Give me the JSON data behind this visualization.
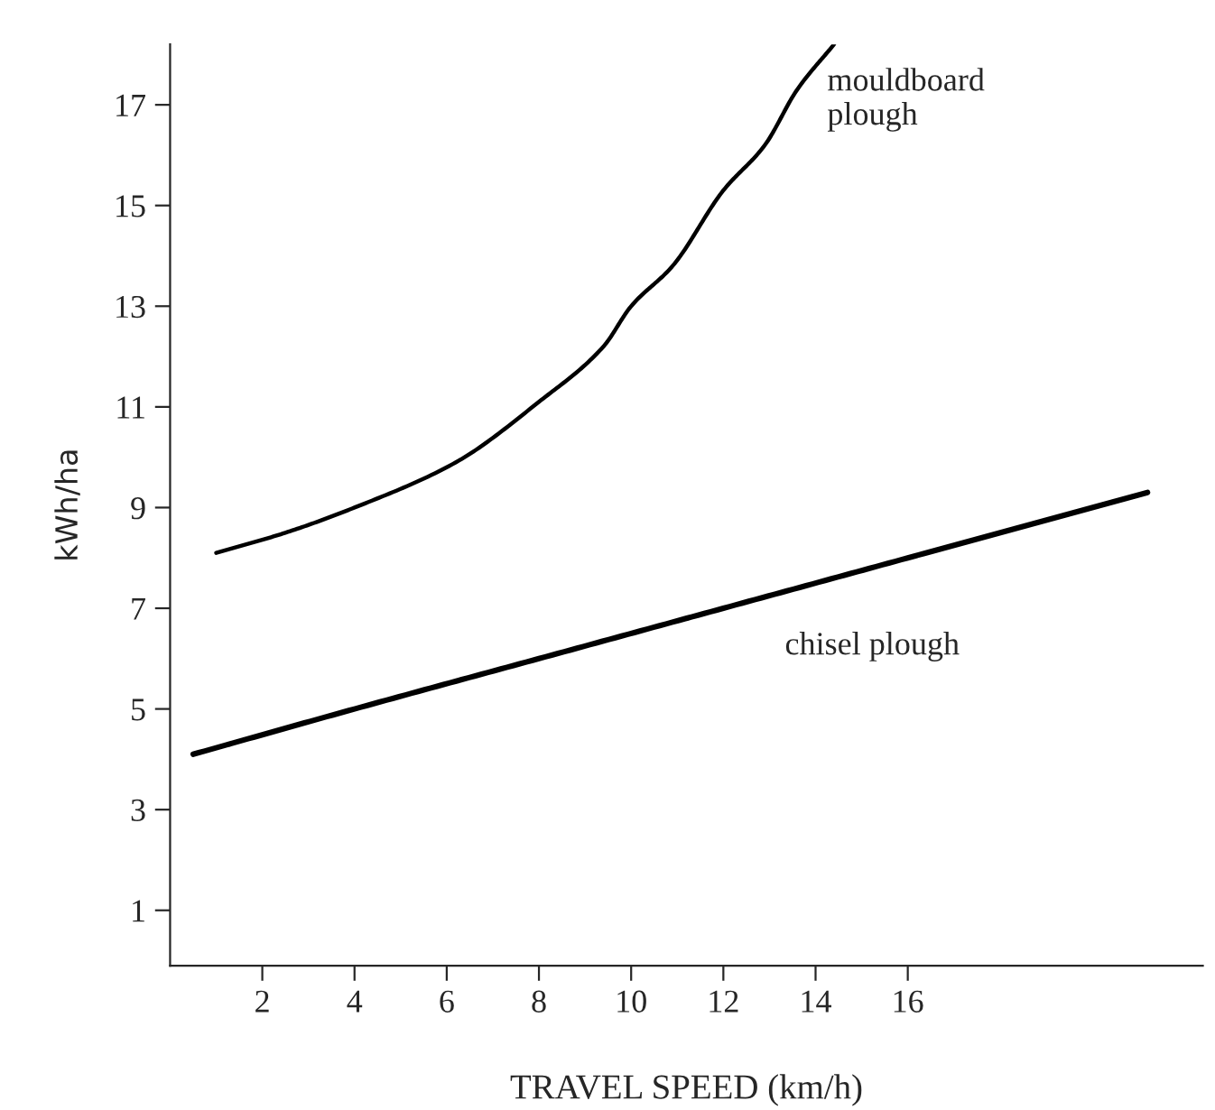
{
  "chart_data": {
    "type": "line",
    "xlabel": "TRAVEL SPEED (km/h)",
    "ylabel": "kWh/ha",
    "xlim": [
      0,
      22.4
    ],
    "ylim": [
      -0.1,
      18.2
    ],
    "xticks": [
      2,
      4,
      6,
      8,
      10,
      12,
      14,
      16
    ],
    "yticks": [
      1,
      3,
      5,
      7,
      9,
      11,
      13,
      15,
      17
    ],
    "grid": false,
    "marker": "none",
    "line_style": "solid",
    "series": [
      {
        "name": "mouldboard plough",
        "color": "#000000",
        "x": [
          1.0,
          2.5,
          4.0,
          6.2,
          8.0,
          9.4,
          10.0,
          10.9,
          12.0,
          12.9,
          13.6,
          14.4
        ],
        "values": [
          8.1,
          8.5,
          9.0,
          9.9,
          11.1,
          12.2,
          13.0,
          13.8,
          15.3,
          16.2,
          17.3,
          18.2
        ]
      },
      {
        "name": "chisel plough",
        "color": "#000000",
        "x": [
          0.5,
          4.0,
          8.0,
          12.0,
          16.0,
          21.2
        ],
        "values": [
          4.1,
          5.0,
          6.0,
          7.0,
          8.0,
          9.3
        ]
      }
    ]
  }
}
